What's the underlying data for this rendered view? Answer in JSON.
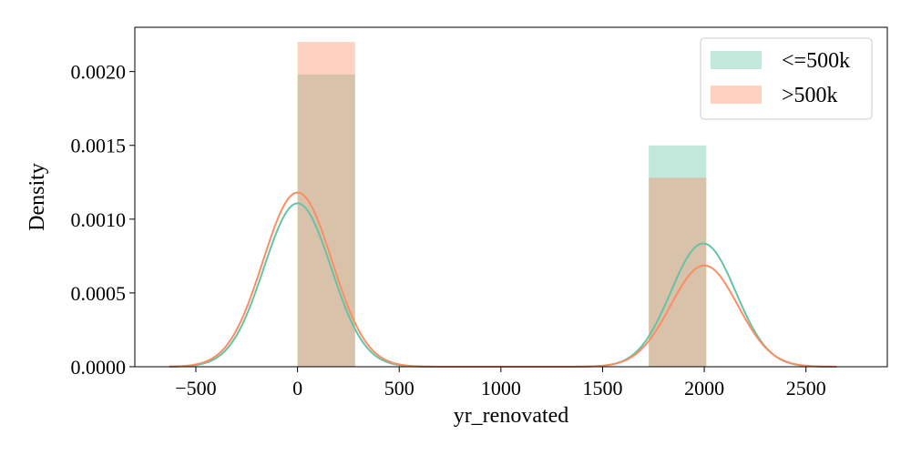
{
  "chart_data": {
    "type": "bar",
    "xlabel": "yr_renovated",
    "ylabel": "Density",
    "xlim": [
      -800,
      2900
    ],
    "ylim": [
      0,
      0.0023
    ],
    "x_ticks": [
      -500,
      0,
      500,
      1000,
      1500,
      2000,
      2500
    ],
    "x_tick_labels": [
      "−500",
      "0",
      "500",
      "1000",
      "1500",
      "2000",
      "2500"
    ],
    "y_ticks": [
      0,
      0.0005,
      0.001,
      0.0015,
      0.002
    ],
    "y_tick_labels": [
      "0.0000",
      "0.0005",
      "0.0010",
      "0.0015",
      "0.0020"
    ],
    "grid": false,
    "legend_position": "top-right",
    "series": [
      {
        "name": "<=500k",
        "color": "#66c2a5",
        "histogram": [
          {
            "x0": 0,
            "x1": 283,
            "density": 0.00198
          },
          {
            "x0": 1727,
            "x1": 2010,
            "density": 0.0015
          }
        ],
        "kde": [
          {
            "mu": 0,
            "sigma": 165,
            "weight": 0.458
          },
          {
            "mu": 1995,
            "sigma": 160,
            "weight": 0.335
          }
        ]
      },
      {
        "name": ">500k",
        "color": "#fc8d62",
        "histogram": [
          {
            "x0": 0,
            "x1": 283,
            "density": 0.0022
          },
          {
            "x0": 1727,
            "x1": 2010,
            "density": 0.00128
          }
        ],
        "kde": [
          {
            "mu": 0,
            "sigma": 170,
            "weight": 0.503
          },
          {
            "mu": 2000,
            "sigma": 165,
            "weight": 0.284
          }
        ]
      }
    ]
  }
}
